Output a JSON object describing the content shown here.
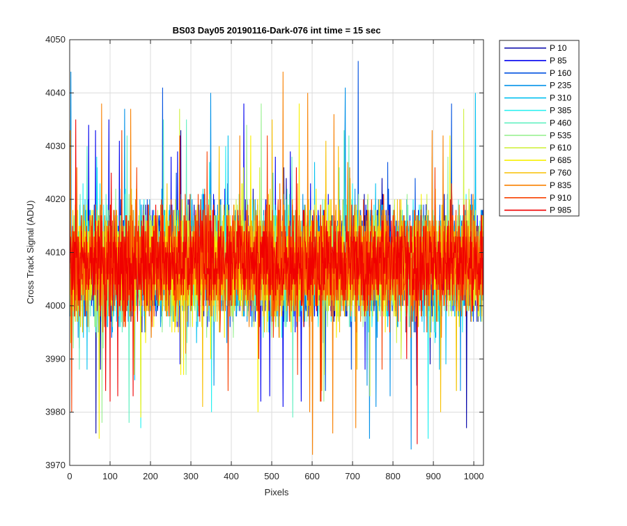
{
  "chart_data": {
    "type": "line",
    "title": "BS03 Day05 20190116-Dark-076 int time = 15 sec",
    "xlabel": "Pixels",
    "ylabel": "Cross Track Signal (ADU)",
    "xlim": [
      0,
      1024
    ],
    "ylim": [
      3970,
      4050
    ],
    "xticks": [
      0,
      100,
      200,
      300,
      400,
      500,
      600,
      700,
      800,
      900,
      1000
    ],
    "yticks": [
      3970,
      3980,
      3990,
      4000,
      4010,
      4020,
      4030,
      4040,
      4050
    ],
    "grid": true,
    "legend_position": "outside-top-right",
    "x_points": 1024,
    "series": [
      {
        "name": "P 10",
        "color": "#0000a8",
        "mean": 4008,
        "spread": 8,
        "seed": 11
      },
      {
        "name": "P 85",
        "color": "#0000f0",
        "mean": 4008,
        "spread": 8,
        "seed": 23
      },
      {
        "name": "P 160",
        "color": "#0050e0",
        "mean": 4008,
        "spread": 8,
        "seed": 37
      },
      {
        "name": "P 235",
        "color": "#0090e8",
        "mean": 4008,
        "spread": 8,
        "seed": 41
      },
      {
        "name": "P 310",
        "color": "#00c0f0",
        "mean": 4008,
        "spread": 8,
        "seed": 53
      },
      {
        "name": "P 385",
        "color": "#20f0f0",
        "mean": 4008,
        "spread": 8,
        "seed": 67
      },
      {
        "name": "P 460",
        "color": "#60f0c0",
        "mean": 4008,
        "spread": 8,
        "seed": 71
      },
      {
        "name": "P 535",
        "color": "#98f090",
        "mean": 4008,
        "spread": 8,
        "seed": 83
      },
      {
        "name": "P 610",
        "color": "#d0f040",
        "mean": 4008,
        "spread": 8,
        "seed": 97
      },
      {
        "name": "P 685",
        "color": "#f8f000",
        "mean": 4008,
        "spread": 8,
        "seed": 101
      },
      {
        "name": "P 760",
        "color": "#f8c000",
        "mean": 4008,
        "spread": 8,
        "seed": 113
      },
      {
        "name": "P 835",
        "color": "#f88000",
        "mean": 4008,
        "spread": 8,
        "seed": 127
      },
      {
        "name": "P 910",
        "color": "#f84000",
        "mean": 4008,
        "spread": 8,
        "seed": 131
      },
      {
        "name": "P 985",
        "color": "#f00000",
        "mean": 4008,
        "spread": 7,
        "seed": 139
      }
    ]
  }
}
